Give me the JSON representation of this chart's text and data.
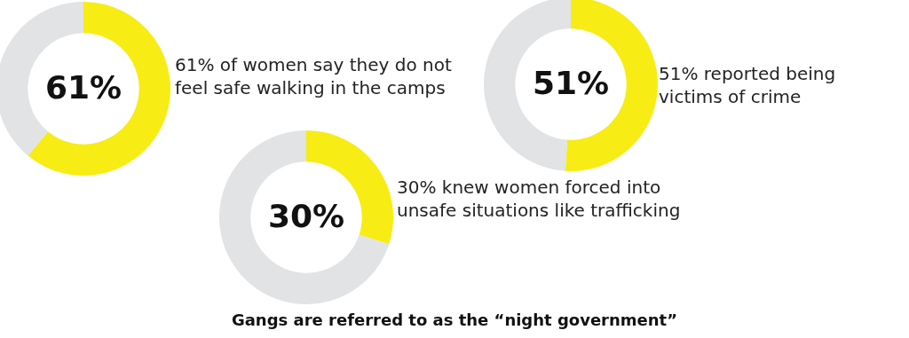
{
  "chart_data": [
    {
      "type": "donut",
      "categories": [
        null,
        null
      ],
      "values": [
        61,
        39
      ],
      "colors": [
        "#f7ec13",
        "#e1e3e5"
      ],
      "value_labels": [
        "61%",
        null
      ],
      "annotations": [
        "61% of women say they do not feel safe walking in the camps"
      ]
    },
    {
      "type": "donut",
      "categories": [
        null,
        null
      ],
      "values": [
        51,
        49
      ],
      "colors": [
        "#f7ec13",
        "#e1e3e5"
      ],
      "value_labels": [
        "51%",
        null
      ],
      "annotations": [
        "51% reported being victims of crime"
      ]
    },
    {
      "type": "donut",
      "categories": [
        null,
        null
      ],
      "values": [
        30,
        70
      ],
      "colors": [
        "#f7ec13",
        "#e1e3e5"
      ],
      "value_labels": [
        "30%",
        null
      ],
      "annotations": [
        "30% knew women forced into unsafe situations like trafficking"
      ]
    },
    {
      "type": "other",
      "title": "Gangs are referred to as the “night government”"
    }
  ]
}
